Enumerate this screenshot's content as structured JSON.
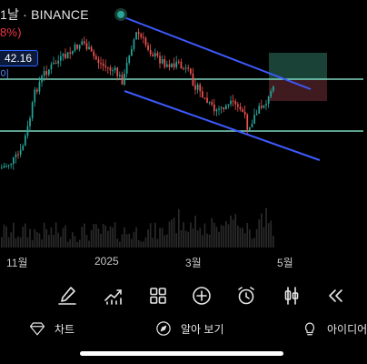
{
  "header": {
    "title": "1날 · BINANCE",
    "change": "8%)"
  },
  "price_tag": {
    "value": "42.16",
    "sub": "이"
  },
  "x_axis": {
    "labels": [
      "11월",
      "2025",
      "3월",
      "5월"
    ]
  },
  "toolbar": {
    "tools": [
      "brush-tool",
      "indicators-tool",
      "layout-tool",
      "add-tool",
      "alert-tool",
      "candles-tool",
      "replay-tool"
    ]
  },
  "nav": {
    "chart_label": "차트",
    "explore_label": "알아 보기",
    "ideas_label": "아이디어"
  },
  "colors": {
    "up": "#26a69a",
    "down": "#ef5350",
    "channel": "#3d5afe",
    "support": "#7ed6c0",
    "long_zone": "#1f4d3f",
    "stop_zone": "#4a1f24"
  }
}
